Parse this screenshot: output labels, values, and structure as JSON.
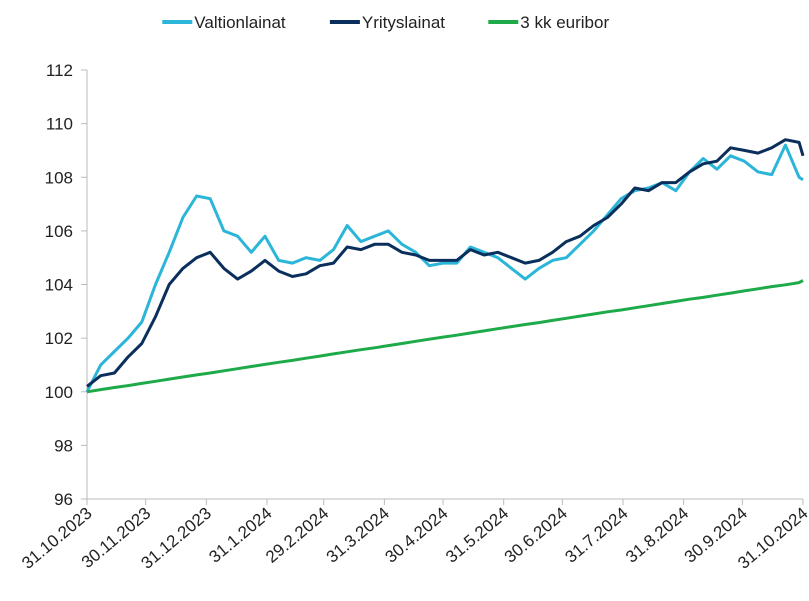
{
  "chart_data": {
    "type": "line",
    "x": [
      "31.10.2023",
      "7.11.2023",
      "14.11.2023",
      "21.11.2023",
      "28.11.2023",
      "5.12.2023",
      "12.12.2023",
      "19.12.2023",
      "26.12.2023",
      "2.1.2024",
      "9.1.2024",
      "16.1.2024",
      "23.1.2024",
      "30.1.2024",
      "6.2.2024",
      "13.2.2024",
      "20.2.2024",
      "27.2.2024",
      "5.3.2024",
      "12.3.2024",
      "19.3.2024",
      "26.3.2024",
      "2.4.2024",
      "9.4.2024",
      "16.4.2024",
      "23.4.2024",
      "30.4.2024",
      "7.5.2024",
      "14.5.2024",
      "21.5.2024",
      "28.5.2024",
      "4.6.2024",
      "11.6.2024",
      "18.6.2024",
      "25.6.2024",
      "2.7.2024",
      "9.7.2024",
      "16.7.2024",
      "23.7.2024",
      "30.7.2024",
      "6.8.2024",
      "13.8.2024",
      "20.8.2024",
      "27.8.2024",
      "3.9.2024",
      "10.9.2024",
      "17.9.2024",
      "24.9.2024",
      "1.10.2024",
      "8.10.2024",
      "15.10.2024",
      "22.10.2024",
      "29.10.2024",
      "31.10.2024"
    ],
    "series": [
      {
        "name": "Valtionlainat",
        "color": "#2bb5d8",
        "values": [
          100.0,
          101.0,
          101.5,
          102.0,
          102.6,
          104.0,
          105.2,
          106.5,
          107.3,
          107.2,
          106.0,
          105.8,
          105.2,
          105.8,
          104.9,
          104.8,
          105.0,
          104.9,
          105.3,
          106.2,
          105.6,
          105.8,
          106.0,
          105.5,
          105.2,
          104.7,
          104.8,
          104.8,
          105.4,
          105.2,
          105.0,
          104.6,
          104.2,
          104.6,
          104.9,
          105.0,
          105.5,
          106.0,
          106.6,
          107.2,
          107.5,
          107.6,
          107.8,
          107.5,
          108.2,
          108.7,
          108.3,
          108.8,
          108.6,
          108.2,
          108.1,
          109.2,
          108.0,
          107.9
        ]
      },
      {
        "name": "Yrityslainat",
        "color": "#0a2f5c",
        "values": [
          100.2,
          100.6,
          100.7,
          101.3,
          101.8,
          102.8,
          104.0,
          104.6,
          105.0,
          105.2,
          104.6,
          104.2,
          104.5,
          104.9,
          104.5,
          104.3,
          104.4,
          104.7,
          104.8,
          105.4,
          105.3,
          105.5,
          105.5,
          105.2,
          105.1,
          104.9,
          104.9,
          104.9,
          105.3,
          105.1,
          105.2,
          105.0,
          104.8,
          104.9,
          105.2,
          105.6,
          105.8,
          106.2,
          106.5,
          107.0,
          107.6,
          107.5,
          107.8,
          107.8,
          108.2,
          108.5,
          108.6,
          109.1,
          109.0,
          108.9,
          109.1,
          109.4,
          109.3,
          108.8
        ]
      },
      {
        "name": "3 kk euribor",
        "color": "#1faa4a",
        "values": [
          100.0,
          100.08,
          100.16,
          100.23,
          100.31,
          100.39,
          100.47,
          100.55,
          100.63,
          100.7,
          100.78,
          100.86,
          100.94,
          101.02,
          101.1,
          101.17,
          101.25,
          101.33,
          101.41,
          101.49,
          101.57,
          101.64,
          101.72,
          101.8,
          101.88,
          101.96,
          102.04,
          102.11,
          102.19,
          102.27,
          102.35,
          102.43,
          102.51,
          102.58,
          102.66,
          102.74,
          102.82,
          102.9,
          102.98,
          103.05,
          103.13,
          103.21,
          103.29,
          103.37,
          103.45,
          103.52,
          103.6,
          103.68,
          103.76,
          103.84,
          103.92,
          103.99,
          104.07,
          104.15
        ]
      }
    ],
    "xlim": [
      "31.10.2023",
      "31.10.2024"
    ],
    "xticks": [
      "31.10.2023",
      "30.11.2023",
      "31.12.2023",
      "31.1.2024",
      "29.2.2024",
      "31.3.2024",
      "30.4.2024",
      "31.5.2024",
      "30.6.2024",
      "31.7.2024",
      "31.8.2024",
      "30.9.2024",
      "31.10.2024"
    ],
    "ylim": [
      96,
      112
    ],
    "yticks": [
      96,
      98,
      100,
      102,
      104,
      106,
      108,
      110,
      112
    ],
    "legend": "top"
  }
}
